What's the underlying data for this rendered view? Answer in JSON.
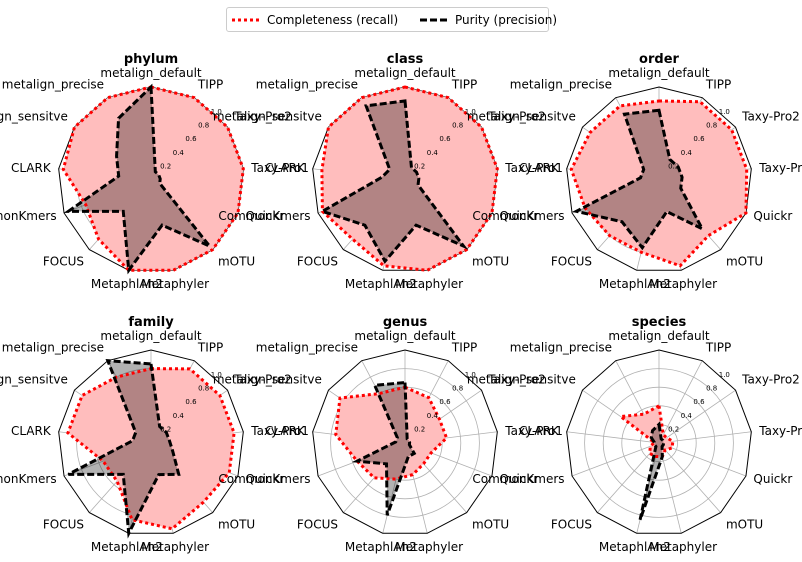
{
  "legend": {
    "recall_label": "Completeness (recall)",
    "purity_label": "Purity (precision)"
  },
  "colors": {
    "recall": "#ff0000",
    "purity": "#000000",
    "fill": "#ffbdbd",
    "fill_overlap": "#b38585",
    "grid": "#b0b0b0"
  },
  "chart_data": [
    {
      "type": "radar",
      "title": "phylum",
      "axes": [
        "metalign_default",
        "TIPP",
        "Taxy-Pro2",
        "Taxy-Pro1",
        "Quickr",
        "mOTU",
        "Metaphyler",
        "MetaphlAn2",
        "FOCUS",
        "CommonKmers",
        "CLARK",
        "metalign_sensitve",
        "metalign_precise"
      ],
      "rticks": [
        0.2,
        0.4,
        0.6,
        0.8,
        1.0
      ],
      "rlim": [
        0,
        1
      ],
      "series": [
        {
          "name": "Completeness (recall)",
          "values": [
            1.0,
            1.0,
            1.0,
            1.0,
            1.0,
            1.0,
            1.0,
            1.0,
            0.85,
            0.75,
            0.95,
            1.0,
            1.0
          ]
        },
        {
          "name": "Purity (precision)",
          "values": [
            1.0,
            0.1,
            0.1,
            0.1,
            0.1,
            0.95,
            0.5,
            1.0,
            0.45,
            0.95,
            0.35,
            0.45,
            0.75
          ]
        }
      ]
    },
    {
      "type": "radar",
      "title": "class",
      "axes": [
        "metalign_default",
        "TIPP",
        "Taxy-Pro2",
        "Taxy-Pro1",
        "Quickr",
        "mOTU",
        "Metaphyler",
        "MetaphlAn2",
        "FOCUS",
        "CommonKmers",
        "CLARK",
        "metalign_sensitve",
        "metalign_precise"
      ],
      "rticks": [
        0.2,
        0.4,
        0.6,
        0.8,
        1.0
      ],
      "rlim": [
        0,
        1
      ],
      "series": [
        {
          "name": "Completeness (recall)",
          "values": [
            1.0,
            1.0,
            1.0,
            1.0,
            1.0,
            1.0,
            1.0,
            0.95,
            0.85,
            0.95,
            0.9,
            1.0,
            1.0
          ]
        },
        {
          "name": "Purity (precision)",
          "values": [
            0.85,
            0.15,
            0.15,
            0.15,
            0.15,
            0.95,
            0.5,
            0.9,
            0.65,
            0.95,
            0.25,
            0.2,
            0.9
          ]
        }
      ]
    },
    {
      "type": "radar",
      "title": "order",
      "axes": [
        "metalign_default",
        "TIPP",
        "Taxy-Pro2",
        "Taxy-Pro1",
        "Quickr",
        "mOTU",
        "Metaphyler",
        "MetaphlAn2",
        "FOCUS",
        "CommonKmers",
        "CLARK",
        "metalign_sensitve",
        "metalign_precise"
      ],
      "rticks": [
        0.2,
        0.4,
        0.6,
        0.8,
        1.0
      ],
      "rlim": [
        0,
        1
      ],
      "series": [
        {
          "name": "Completeness (recall)",
          "values": [
            0.85,
            0.95,
            0.95,
            0.95,
            1.0,
            0.8,
            0.95,
            0.8,
            0.8,
            0.85,
            0.95,
            0.9,
            0.9
          ]
        },
        {
          "name": "Purity (precision)",
          "values": [
            0.75,
            0.25,
            0.25,
            0.25,
            0.25,
            0.7,
            0.35,
            0.75,
            0.6,
            0.95,
            0.2,
            0.2,
            0.8
          ]
        }
      ]
    },
    {
      "type": "radar",
      "title": "family",
      "axes": [
        "metalign_default",
        "TIPP",
        "Taxy-Pro2",
        "Taxy-Pro1",
        "Quickr",
        "mOTU",
        "Metaphyler",
        "MetaphlAn2",
        "FOCUS",
        "CommonKmers",
        "CLARK",
        "metalign_sensitve",
        "metalign_precise"
      ],
      "rticks": [
        0.2,
        0.4,
        0.6,
        0.8,
        1.0
      ],
      "rlim": [
        0,
        1
      ],
      "series": [
        {
          "name": "Completeness (recall)",
          "values": [
            0.8,
            0.9,
            0.9,
            0.9,
            0.9,
            0.85,
            0.95,
            0.85,
            0.55,
            0.55,
            0.9,
            0.9,
            0.8
          ]
        },
        {
          "name": "Purity (precision)",
          "values": [
            0.85,
            0.2,
            0.2,
            0.2,
            0.25,
            0.45,
            0.35,
            1.0,
            0.45,
            0.95,
            0.2,
            0.2,
            1.0
          ]
        }
      ]
    },
    {
      "type": "radar",
      "title": "genus",
      "axes": [
        "metalign_default",
        "TIPP",
        "Taxy-Pro2",
        "Taxy-Pro1",
        "Quickr",
        "mOTU",
        "Metaphyler",
        "MetaphlAn2",
        "FOCUS",
        "CommonKmers",
        "CLARK",
        "metalign_sensitve",
        "metalign_precise"
      ],
      "rticks": [
        0.2,
        0.4,
        0.6,
        0.8,
        1.0
      ],
      "rlim": [
        0,
        1
      ],
      "series": [
        {
          "name": "Completeness (recall)",
          "values": [
            0.6,
            0.55,
            0.45,
            0.45,
            0.3,
            0.3,
            0.35,
            0.4,
            0.5,
            0.55,
            0.75,
            0.85,
            0.6
          ]
        },
        {
          "name": "Purity (precision)",
          "values": [
            0.65,
            0.05,
            0.05,
            0.05,
            0.05,
            0.15,
            0.15,
            0.8,
            0.3,
            0.55,
            0.1,
            0.1,
            0.7
          ]
        }
      ]
    },
    {
      "type": "radar",
      "title": "species",
      "axes": [
        "metalign_default",
        "TIPP",
        "Taxy-Pro2",
        "Taxy-Pro1",
        "Quickr",
        "mOTU",
        "Metaphyler",
        "MetaphlAn2",
        "FOCUS",
        "CommonKmers",
        "CLARK",
        "metalign_sensitve",
        "metalign_precise"
      ],
      "rticks": [
        0.2,
        0.4,
        0.6,
        0.8,
        1.0
      ],
      "rlim": [
        0,
        1
      ],
      "series": [
        {
          "name": "Completeness (recall)",
          "values": [
            0.4,
            0.1,
            0.1,
            0.15,
            0.15,
            0.1,
            0.15,
            0.15,
            0.15,
            0.1,
            0.05,
            0.5,
            0.35
          ]
        },
        {
          "name": "Purity (precision)",
          "values": [
            0.2,
            0.05,
            0.05,
            0.05,
            0.05,
            0.05,
            0.15,
            0.85,
            0.05,
            0.05,
            0.05,
            0.1,
            0.15
          ]
        }
      ]
    }
  ]
}
